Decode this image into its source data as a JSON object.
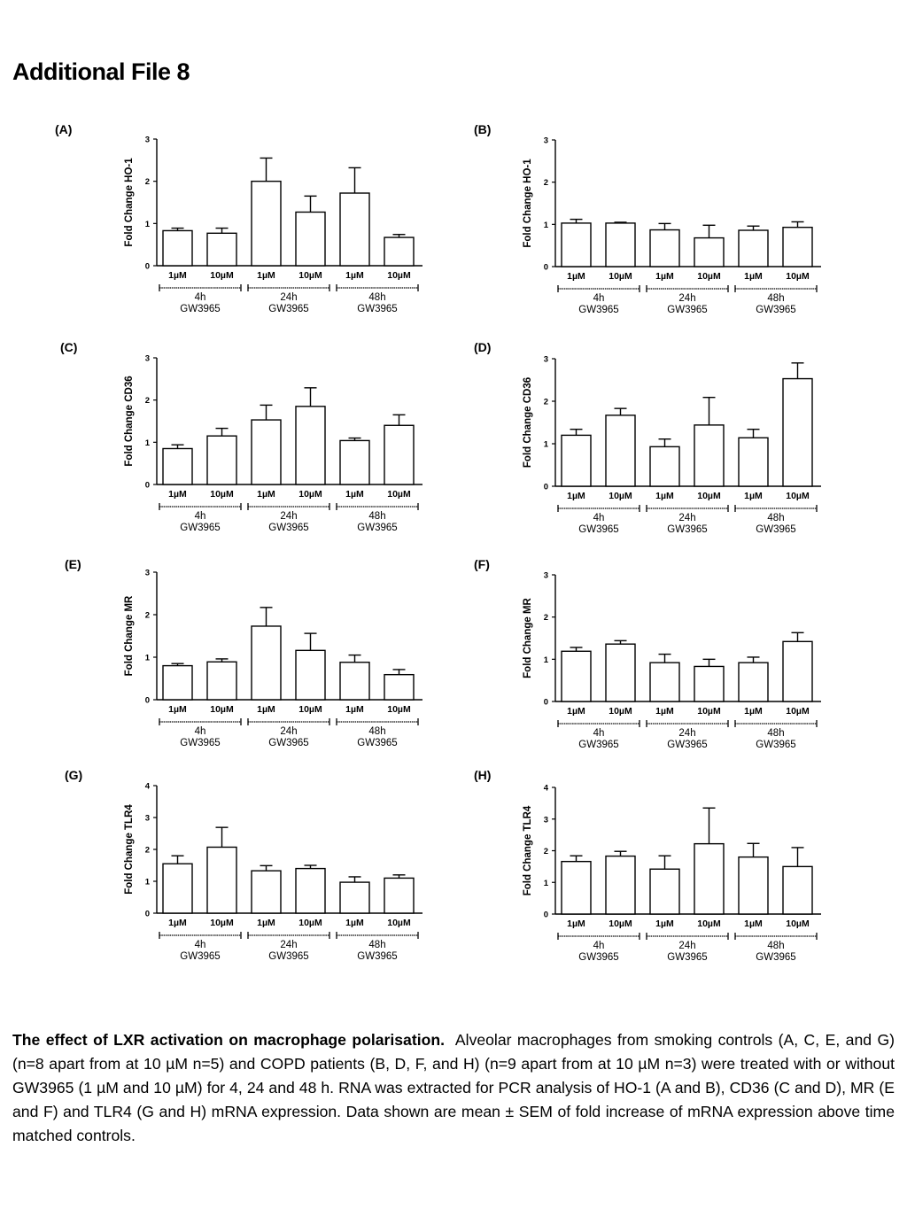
{
  "page_title": "Additional File 8",
  "caption": {
    "bold": "The effect of LXR activation on macrophage polarisation.",
    "text": "Alveolar macrophages from smoking controls (A, C, E, and G) (n=8 apart from at 10 µM n=5) and COPD patients (B, D, F, and H) (n=9 apart from at 10 µM n=3) were treated with or without GW3965 (1 µM and 10 µM) for 4, 24 and 48 h.  RNA was extracted for PCR analysis of HO-1 (A and B), CD36 (C and D), MR (E and F) and TLR4 (G and H) mRNA expression.  Data shown are mean ± SEM of fold increase of mRNA expression above time matched controls."
  },
  "chart_data": [
    {
      "panel": "(A)",
      "type": "bar",
      "ylabel": "Fold Change HO-1",
      "ylim": [
        0,
        3
      ],
      "yticks": [
        "0",
        "1",
        "2",
        "3"
      ],
      "categories": [
        "1µM",
        "10µM",
        "1µM",
        "10µM",
        "1µM",
        "10µM"
      ],
      "groups": [
        {
          "top": "4h",
          "bottom": "GW3965"
        },
        {
          "top": "24h",
          "bottom": "GW3965"
        },
        {
          "top": "48h",
          "bottom": "GW3965"
        }
      ],
      "values": [
        0.83,
        0.77,
        2.0,
        1.27,
        1.72,
        0.67
      ],
      "errors": [
        0.06,
        0.12,
        0.55,
        0.38,
        0.6,
        0.07
      ]
    },
    {
      "panel": "(B)",
      "type": "bar",
      "ylabel": "Fold Change HO-1",
      "ylim": [
        0,
        3
      ],
      "yticks": [
        "0",
        "1",
        "2",
        "3"
      ],
      "categories": [
        "1µM",
        "10µM",
        "1µM",
        "10µM",
        "1µM",
        "10µM"
      ],
      "groups": [
        {
          "top": "4h",
          "bottom": "GW3965"
        },
        {
          "top": "24h",
          "bottom": "GW3965"
        },
        {
          "top": "48h",
          "bottom": "GW3965"
        }
      ],
      "values": [
        1.03,
        1.03,
        0.87,
        0.68,
        0.86,
        0.93
      ],
      "errors": [
        0.09,
        0.02,
        0.15,
        0.3,
        0.1,
        0.13
      ]
    },
    {
      "panel": "(C)",
      "type": "bar",
      "ylabel": "Fold Change CD36",
      "ylim": [
        0,
        3
      ],
      "yticks": [
        "0",
        "1",
        "2",
        "3"
      ],
      "categories": [
        "1µM",
        "10µM",
        "1µM",
        "10µM",
        "1µM",
        "10µM"
      ],
      "groups": [
        {
          "top": "4h",
          "bottom": "GW3965"
        },
        {
          "top": "24h",
          "bottom": "GW3965"
        },
        {
          "top": "48h",
          "bottom": "GW3965"
        }
      ],
      "values": [
        0.85,
        1.15,
        1.53,
        1.85,
        1.04,
        1.4
      ],
      "errors": [
        0.09,
        0.18,
        0.35,
        0.44,
        0.06,
        0.25
      ]
    },
    {
      "panel": "(D)",
      "type": "bar",
      "ylabel": "Fold Change CD36",
      "ylim": [
        0,
        3
      ],
      "yticks": [
        "0",
        "1",
        "2",
        "3"
      ],
      "categories": [
        "1µM",
        "10µM",
        "1µM",
        "10µM",
        "1µM",
        "10µM"
      ],
      "groups": [
        {
          "top": "4h",
          "bottom": "GW3965"
        },
        {
          "top": "24h",
          "bottom": "GW3965"
        },
        {
          "top": "48h",
          "bottom": "GW3965"
        }
      ],
      "values": [
        1.2,
        1.67,
        0.93,
        1.44,
        1.14,
        2.53
      ],
      "errors": [
        0.14,
        0.16,
        0.18,
        0.65,
        0.2,
        0.37
      ]
    },
    {
      "panel": "(E)",
      "type": "bar",
      "ylabel": "Fold Change MR",
      "ylim": [
        0,
        3
      ],
      "yticks": [
        "0",
        "1",
        "2",
        "3"
      ],
      "categories": [
        "1µM",
        "10µM",
        "1µM",
        "10µM",
        "1µM",
        "10µM"
      ],
      "groups": [
        {
          "top": "4h",
          "bottom": "GW3965"
        },
        {
          "top": "24h",
          "bottom": "GW3965"
        },
        {
          "top": "48h",
          "bottom": "GW3965"
        }
      ],
      "values": [
        0.8,
        0.89,
        1.73,
        1.16,
        0.88,
        0.59
      ],
      "errors": [
        0.05,
        0.07,
        0.44,
        0.4,
        0.17,
        0.12
      ]
    },
    {
      "panel": "(F)",
      "type": "bar",
      "ylabel": "Fold Change MR",
      "ylim": [
        0,
        3
      ],
      "yticks": [
        "0",
        "1",
        "2",
        "3"
      ],
      "categories": [
        "1µM",
        "10µM",
        "1µM",
        "10µM",
        "1µM",
        "10µM"
      ],
      "groups": [
        {
          "top": "4h",
          "bottom": "GW3965"
        },
        {
          "top": "24h",
          "bottom": "GW3965"
        },
        {
          "top": "48h",
          "bottom": "GW3965"
        }
      ],
      "values": [
        1.19,
        1.36,
        0.92,
        0.83,
        0.92,
        1.42
      ],
      "errors": [
        0.09,
        0.08,
        0.2,
        0.17,
        0.13,
        0.21
      ]
    },
    {
      "panel": "(G)",
      "type": "bar",
      "ylabel": "Fold Change TLR4",
      "ylim": [
        0,
        4
      ],
      "yticks": [
        "0",
        "1",
        "2",
        "3",
        "4"
      ],
      "categories": [
        "1µM",
        "10µM",
        "1µM",
        "10µM",
        "1µM",
        "10µM"
      ],
      "groups": [
        {
          "top": "4h",
          "bottom": "GW3965"
        },
        {
          "top": "24h",
          "bottom": "GW3965"
        },
        {
          "top": "48h",
          "bottom": "GW3965"
        }
      ],
      "values": [
        1.55,
        2.07,
        1.33,
        1.4,
        0.97,
        1.1
      ],
      "errors": [
        0.25,
        0.62,
        0.16,
        0.1,
        0.17,
        0.1
      ]
    },
    {
      "panel": "(H)",
      "type": "bar",
      "ylabel": "Fold Change TLR4",
      "ylim": [
        0,
        4
      ],
      "yticks": [
        "0",
        "1",
        "2",
        "3",
        "4"
      ],
      "categories": [
        "1µM",
        "10µM",
        "1µM",
        "10µM",
        "1µM",
        "10µM"
      ],
      "groups": [
        {
          "top": "4h",
          "bottom": "GW3965"
        },
        {
          "top": "24h",
          "bottom": "GW3965"
        },
        {
          "top": "48h",
          "bottom": "GW3965"
        }
      ],
      "values": [
        1.66,
        1.83,
        1.42,
        2.22,
        1.8,
        1.5
      ],
      "errors": [
        0.18,
        0.15,
        0.42,
        1.13,
        0.43,
        0.6
      ]
    }
  ]
}
